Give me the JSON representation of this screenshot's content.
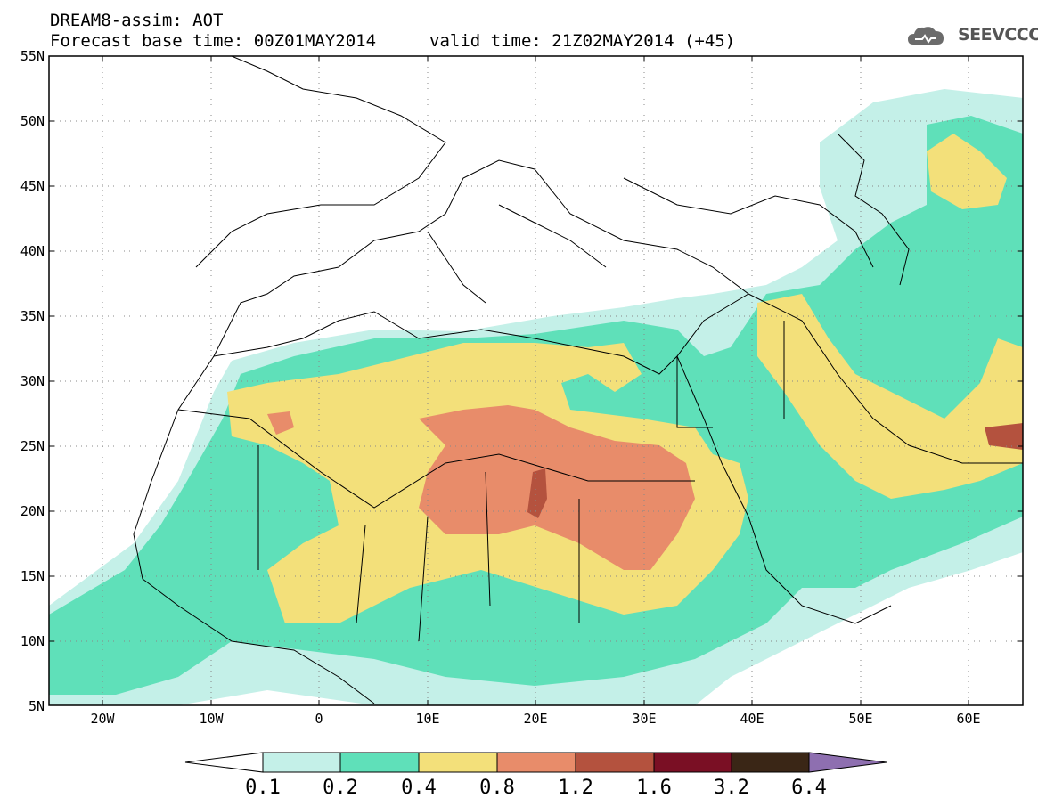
{
  "header": {
    "title": "DREAM8-assim: AOT",
    "base_time": "Forecast base time: 00Z01MAY2014",
    "valid_time": "valid time: 21Z02MAY2014 (+45)",
    "logo_text": "SEEVCCC"
  },
  "axes": {
    "lat_labels": [
      "55N",
      "50N",
      "45N",
      "40N",
      "35N",
      "30N",
      "25N",
      "20N",
      "15N",
      "10N",
      "5N"
    ],
    "lon_labels": [
      "20W",
      "10W",
      "0",
      "10E",
      "20E",
      "30E",
      "40E",
      "50E",
      "60E"
    ]
  },
  "colorbar": {
    "levels": [
      "0.1",
      "0.2",
      "0.4",
      "0.8",
      "1.2",
      "1.6",
      "3.2",
      "6.4"
    ],
    "colors": [
      "#c4f0e8",
      "#5fe0b9",
      "#f3e07a",
      "#e88c6a",
      "#b4523e",
      "#7a0f24",
      "#3a2616",
      "#8e6fb0"
    ]
  }
}
